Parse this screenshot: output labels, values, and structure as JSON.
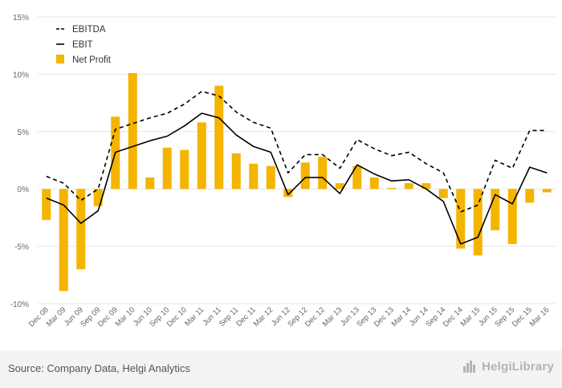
{
  "chart_data": {
    "type": "bar",
    "categories": [
      "Dec 08",
      "Mar 09",
      "Jun 09",
      "Sep 09",
      "Dec 09",
      "Mar 10",
      "Jun 10",
      "Sep 10",
      "Dec 10",
      "Mar 11",
      "Jun 11",
      "Sep 11",
      "Dec 11",
      "Mar 12",
      "Jun 12",
      "Sep 12",
      "Dec 12",
      "Mar 13",
      "Jun 13",
      "Sep 13",
      "Dec 13",
      "Mar 14",
      "Jun 14",
      "Sep 14",
      "Dec 14",
      "Mar 15",
      "Jun 15",
      "Sep 15",
      "Dec 15",
      "Mar 16"
    ],
    "ylim": [
      -10,
      15
    ],
    "yticks": [
      -10,
      -5,
      0,
      5,
      10,
      15
    ],
    "ytick_labels": [
      "-10%",
      "-5%",
      "0%",
      "5%",
      "10%",
      "15%"
    ],
    "series": [
      {
        "name": "EBITDA",
        "type": "line",
        "style": "dashed",
        "color": "#000000",
        "values": [
          1.1,
          0.5,
          -1.0,
          0.0,
          5.2,
          5.7,
          6.2,
          6.6,
          7.4,
          8.5,
          8.1,
          6.7,
          5.8,
          5.3,
          1.4,
          3.0,
          3.0,
          1.8,
          4.3,
          3.5,
          2.9,
          3.2,
          2.2,
          1.4,
          -2.0,
          -1.4,
          2.5,
          1.8,
          5.1,
          5.1
        ]
      },
      {
        "name": "EBIT",
        "type": "line",
        "style": "solid",
        "color": "#000000",
        "values": [
          -0.8,
          -1.4,
          -3.0,
          -1.9,
          3.2,
          3.7,
          4.2,
          4.6,
          5.5,
          6.6,
          6.2,
          4.7,
          3.7,
          3.2,
          -0.5,
          1.0,
          1.0,
          -0.4,
          2.1,
          1.3,
          0.7,
          0.8,
          0.0,
          -1.1,
          -4.8,
          -4.2,
          -0.5,
          -1.3,
          1.9,
          1.4
        ]
      },
      {
        "name": "Net Profit",
        "type": "bar",
        "color": "#f5b400",
        "values": [
          -2.7,
          -8.9,
          -7.0,
          -1.5,
          6.3,
          10.1,
          1.0,
          3.6,
          3.4,
          5.8,
          9.0,
          3.1,
          2.2,
          2.0,
          -0.7,
          2.3,
          2.8,
          0.5,
          2.0,
          1.0,
          0.1,
          0.5,
          0.5,
          -0.8,
          -5.2,
          -5.8,
          -3.6,
          -4.8,
          -1.2,
          -0.3
        ]
      }
    ],
    "legend": {
      "position": "top-left"
    },
    "grid": {
      "y": true,
      "x": false
    }
  },
  "colors": {
    "bar": "#f5b400",
    "grid": "#e6e6e6",
    "axis_text": "#666666"
  },
  "footer": {
    "source": "Source: Company Data, Helgi Analytics",
    "brand": "HelgiLibrary",
    "brand_icon": "bar-chart-icon"
  }
}
